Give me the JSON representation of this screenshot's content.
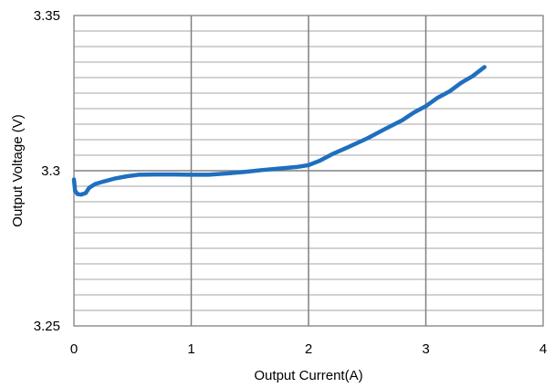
{
  "chart_data": {
    "type": "line",
    "title": "",
    "xlabel": "Output Current(A)",
    "ylabel": "Output Voltage (V)",
    "xlim": [
      0,
      4
    ],
    "ylim": [
      3.25,
      3.35
    ],
    "x_ticks": [
      "0",
      "1",
      "2",
      "3",
      "4"
    ],
    "y_ticks": [
      "3.25",
      "3.3",
      "3.35"
    ],
    "x_tick_values": [
      0,
      1,
      2,
      3,
      4
    ],
    "y_tick_values": [
      3.25,
      3.3,
      3.35
    ],
    "x_major_grid": [
      1,
      2,
      3
    ],
    "y_minor_grid": [
      3.255,
      3.26,
      3.265,
      3.27,
      3.275,
      3.28,
      3.285,
      3.29,
      3.295,
      3.305,
      3.31,
      3.315,
      3.32,
      3.325,
      3.33,
      3.335,
      3.34,
      3.345
    ],
    "y_major_grid": [
      3.3
    ],
    "grid": true,
    "legend": "none",
    "series": [
      {
        "color": "#1f6fbf",
        "x": [
          0.0,
          0.01,
          0.03,
          0.06,
          0.1,
          0.13,
          0.18,
          0.25,
          0.35,
          0.45,
          0.55,
          0.7,
          0.85,
          1.0,
          1.15,
          1.3,
          1.45,
          1.6,
          1.75,
          1.9,
          2.0,
          2.1,
          2.2,
          2.35,
          2.5,
          2.65,
          2.8,
          2.9,
          3.0,
          3.1,
          3.2,
          3.3,
          3.4,
          3.5
        ],
        "y": [
          3.2972,
          3.2935,
          3.2925,
          3.2923,
          3.2928,
          3.2945,
          3.2957,
          3.2965,
          3.2975,
          3.2982,
          3.2987,
          3.2988,
          3.2988,
          3.2987,
          3.2987,
          3.2991,
          3.2996,
          3.3002,
          3.3007,
          3.3012,
          3.3018,
          3.3033,
          3.3053,
          3.3078,
          3.3104,
          3.3134,
          3.3163,
          3.3188,
          3.3208,
          3.3235,
          3.3255,
          3.3283,
          3.3305,
          3.3334
        ]
      }
    ]
  }
}
